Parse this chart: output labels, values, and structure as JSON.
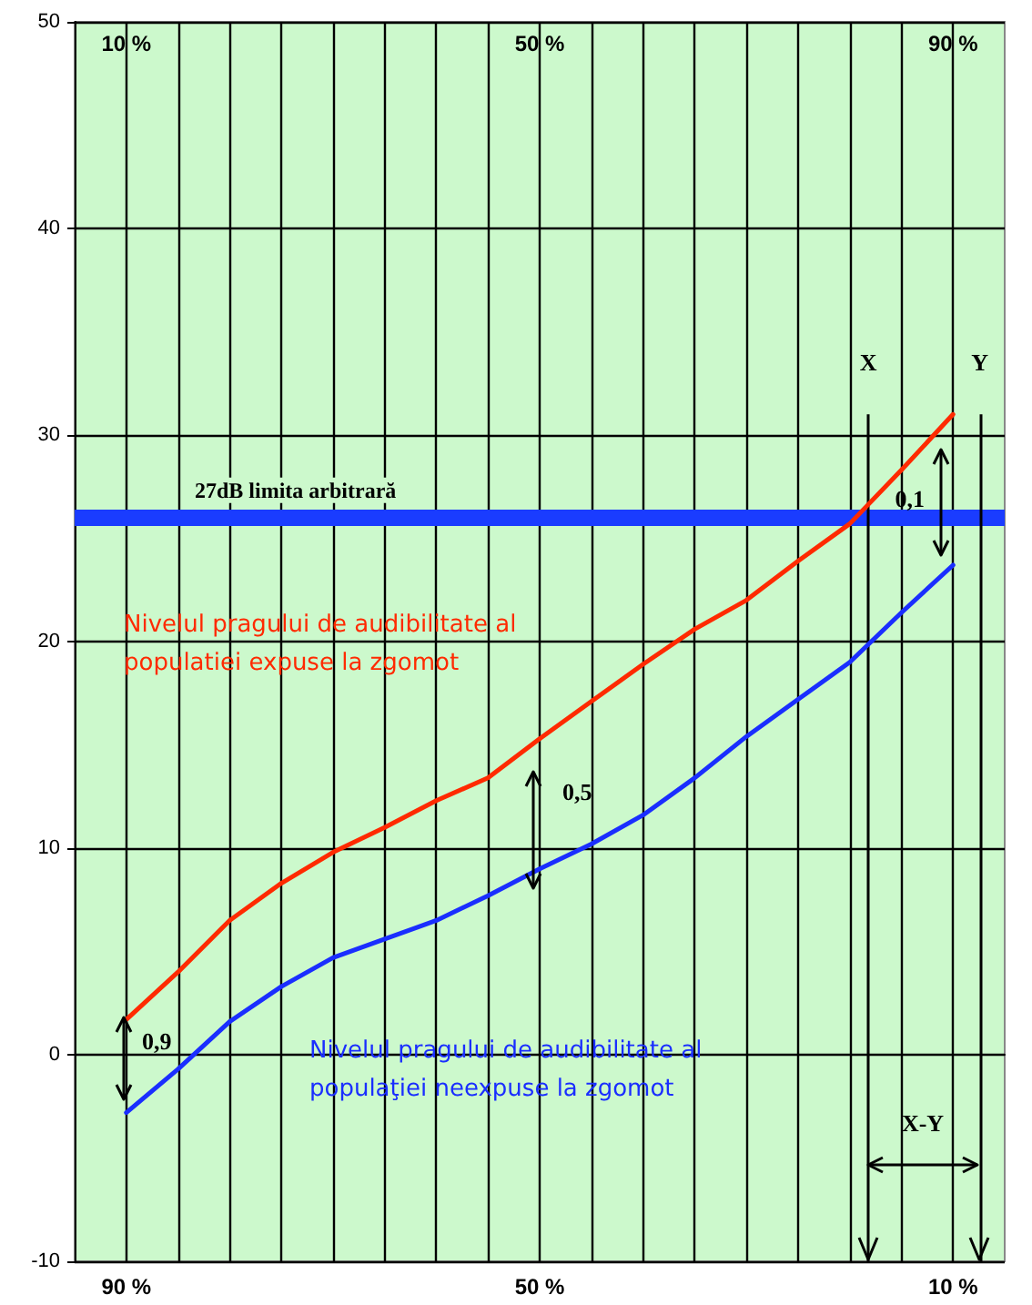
{
  "chart_data": {
    "type": "line",
    "x": [
      90,
      85,
      80,
      75,
      70,
      65,
      60,
      55,
      50,
      45,
      40,
      35,
      30,
      25,
      20,
      15,
      10
    ],
    "xlim": [
      95,
      5
    ],
    "xticks": [
      {
        "value": 10,
        "label": "10 %"
      },
      {
        "value": 15,
        "label": null
      },
      {
        "value": 20,
        "label": null
      },
      {
        "value": 25,
        "label": null
      },
      {
        "value": 30,
        "label": null
      },
      {
        "value": 35,
        "label": null
      },
      {
        "value": 40,
        "label": null
      },
      {
        "value": 45,
        "label": null
      },
      {
        "value": 50,
        "label": "50 %"
      },
      {
        "value": 55,
        "label": null
      },
      {
        "value": 60,
        "label": null
      },
      {
        "value": 65,
        "label": null
      },
      {
        "value": 70,
        "label": null
      },
      {
        "value": 75,
        "label": null
      },
      {
        "value": 80,
        "label": null
      },
      {
        "value": 85,
        "label": null
      },
      {
        "value": 90,
        "label": "90 %"
      }
    ],
    "x2lim": [
      5,
      95
    ],
    "x2ticks": [
      {
        "value": 10,
        "label": "10 %"
      },
      {
        "value": 50,
        "label": "50 %"
      },
      {
        "value": 90,
        "label": "90 %"
      }
    ],
    "ylim": [
      -10,
      50
    ],
    "yticks": [
      -10,
      0,
      10,
      20,
      30,
      40,
      50
    ],
    "grid": true,
    "legend": false,
    "marker": "none",
    "line_style": "solid",
    "series": [
      {
        "name": "Nivelul pragului de audibilitate al populatiei expuse la zgomot",
        "color": "#ff2a00",
        "values": [
          1.7,
          4.0,
          6.5,
          8.3,
          9.8,
          11.0,
          12.3,
          13.4,
          15.3,
          17.1,
          18.9,
          20.6,
          22.0,
          23.9,
          25.7,
          28.3,
          31.0
        ]
      },
      {
        "name": "Nivelul pragului de audibilitate al populaţiei neexpuse la zgomot",
        "color": "#1a2eff",
        "values": [
          -2.8,
          -0.7,
          1.6,
          3.3,
          4.7,
          5.6,
          6.5,
          7.7,
          9.0,
          10.2,
          11.6,
          13.4,
          15.4,
          17.2,
          19.0,
          21.4,
          23.7
        ]
      }
    ],
    "ref_lines": [
      {
        "axis": "y",
        "value": 26,
        "label": "27dB limita arbitrară",
        "color": "#1a3cff"
      },
      {
        "axis": "x",
        "value": 18.2,
        "label": "X",
        "color": "#000000"
      },
      {
        "axis": "x",
        "value": 7.4,
        "label": "Y",
        "color": "#000000"
      }
    ],
    "annotations": [
      "0,9",
      "0,5",
      "0,1",
      "X-Y"
    ]
  }
}
